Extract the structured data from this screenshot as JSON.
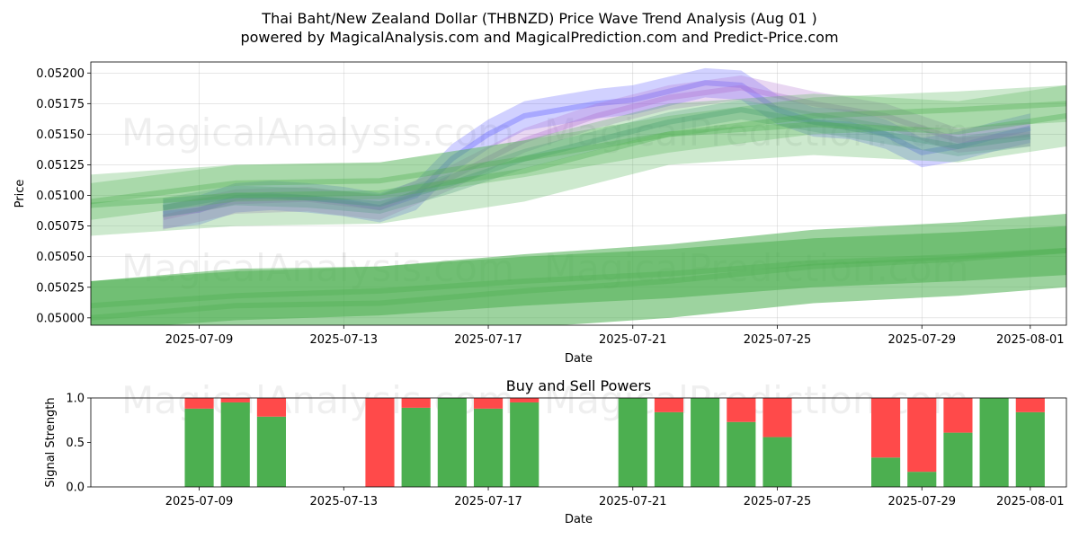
{
  "title_line1": "Thai Baht/New Zealand Dollar (THBNZD) Price Wave Trend Analysis (Aug 01 )",
  "title_line2": "powered by MagicalAnalysis.com and MagicalPrediction.com and Predict-Price.com",
  "watermarks": [
    "MagicalAnalysis.com",
    "MagicalPrediction.com"
  ],
  "colors": {
    "green": "#4caf50",
    "red": "#ff4a4a",
    "blue": "#5b5bff",
    "purple": "#b070d0",
    "teal": "#4a8f8f",
    "amber": "#c8b040"
  },
  "chart_data": [
    {
      "type": "area",
      "title": "",
      "xlabel": "Date",
      "ylabel": "Price",
      "x_ticks": [
        "2025-07-09",
        "2025-07-13",
        "2025-07-17",
        "2025-07-21",
        "2025-07-25",
        "2025-07-29",
        "2025-08-01"
      ],
      "y_ticks": [
        "0.05000",
        "0.05025",
        "0.05050",
        "0.05075",
        "0.05100",
        "0.05125",
        "0.05150",
        "0.05175",
        "0.05200"
      ],
      "xlim": [
        "2025-07-06",
        "2025-08-02"
      ],
      "ylim": [
        0.04994,
        0.05209
      ],
      "grid": true,
      "price_bands": [
        {
          "name": "",
          "color": "blue",
          "x": [
            "2025-07-08",
            "2025-07-09",
            "2025-07-10",
            "2025-07-11",
            "2025-07-12",
            "2025-07-13",
            "2025-07-14",
            "2025-07-15",
            "2025-07-16",
            "2025-07-17",
            "2025-07-18",
            "2025-07-19",
            "2025-07-20",
            "2025-07-21",
            "2025-07-22",
            "2025-07-23",
            "2025-07-24",
            "2025-07-25",
            "2025-07-26",
            "2025-07-27",
            "2025-07-28",
            "2025-07-29",
            "2025-07-30",
            "2025-07-31",
            "2025-08-01",
            "2025-08-01"
          ],
          "center": [
            0.05085,
            0.05088,
            0.05098,
            0.051,
            0.05098,
            0.05095,
            0.0509,
            0.051,
            0.0513,
            0.0515,
            0.05165,
            0.0517,
            0.05175,
            0.05178,
            0.05185,
            0.05192,
            0.0519,
            0.0517,
            0.0516,
            0.05158,
            0.0515,
            0.05135,
            0.0514,
            0.05148,
            0.05155,
            0.05155
          ],
          "half_width": 0.00012
        },
        {
          "name": "",
          "color": "purple",
          "x": [
            "2025-07-08",
            "2025-07-10",
            "2025-07-12",
            "2025-07-14",
            "2025-07-16",
            "2025-07-18",
            "2025-07-20",
            "2025-07-22",
            "2025-07-24",
            "2025-07-26",
            "2025-07-28",
            "2025-07-30",
            "2025-08-01"
          ],
          "center": [
            0.05082,
            0.05095,
            0.05097,
            0.0509,
            0.05115,
            0.05145,
            0.05165,
            0.0518,
            0.05188,
            0.05175,
            0.05165,
            0.05145,
            0.0515
          ],
          "half_width": 0.0001
        },
        {
          "name": "",
          "color": "teal",
          "x": [
            "2025-07-08",
            "2025-07-10",
            "2025-07-12",
            "2025-07-14",
            "2025-07-16",
            "2025-07-18",
            "2025-07-20",
            "2025-07-22",
            "2025-07-24",
            "2025-07-26",
            "2025-07-28",
            "2025-07-30",
            "2025-08-01"
          ],
          "center": [
            0.0509,
            0.051,
            0.05098,
            0.05093,
            0.0511,
            0.0513,
            0.05145,
            0.0516,
            0.0517,
            0.0516,
            0.0515,
            0.0514,
            0.05148
          ],
          "half_width": 8e-05
        },
        {
          "name": "",
          "color": "green",
          "x": [
            "2025-07-06",
            "2025-07-10",
            "2025-07-14",
            "2025-07-18",
            "2025-07-22",
            "2025-07-26",
            "2025-07-30",
            "2025-08-02"
          ],
          "center": [
            0.05092,
            0.051,
            0.05102,
            0.0512,
            0.0515,
            0.05158,
            0.05152,
            0.05165
          ],
          "half_width": 0.00025
        },
        {
          "name": "",
          "color": "green",
          "x": [
            "2025-07-06",
            "2025-07-10",
            "2025-07-14",
            "2025-07-18",
            "2025-07-22",
            "2025-07-26",
            "2025-07-30",
            "2025-08-02"
          ],
          "center": [
            0.05095,
            0.0511,
            0.05112,
            0.0513,
            0.0515,
            0.05165,
            0.0517,
            0.05175
          ],
          "half_width": 0.00015
        },
        {
          "name": "",
          "color": "green",
          "x": [
            "2025-07-06",
            "2025-07-10",
            "2025-07-14",
            "2025-07-18",
            "2025-07-22",
            "2025-07-26",
            "2025-07-30",
            "2025-08-02"
          ],
          "center": [
            0.0501,
            0.05018,
            0.05022,
            0.0503,
            0.05036,
            0.05045,
            0.0505,
            0.05055
          ],
          "half_width": 0.0002
        },
        {
          "name": "",
          "color": "green",
          "x": [
            "2025-07-06",
            "2025-07-10",
            "2025-07-14",
            "2025-07-18",
            "2025-07-22",
            "2025-07-26",
            "2025-07-30",
            "2025-08-02"
          ],
          "center": [
            0.05,
            0.0501,
            0.05012,
            0.05022,
            0.0503,
            0.05042,
            0.05048,
            0.05055
          ],
          "half_width": 0.0003
        }
      ]
    },
    {
      "type": "bar",
      "title": "Buy and Sell Powers",
      "xlabel": "Date",
      "ylabel": "Signal Strength",
      "x_ticks": [
        "2025-07-09",
        "2025-07-13",
        "2025-07-17",
        "2025-07-21",
        "2025-07-25",
        "2025-07-29",
        "2025-08-01"
      ],
      "y_ticks": [
        "0.0",
        "0.5",
        "1.0"
      ],
      "ylim": [
        0,
        1
      ],
      "grid": false,
      "series": [
        {
          "name": "Buy",
          "color": "green"
        },
        {
          "name": "Sell",
          "color": "red"
        }
      ],
      "bars": [
        {
          "date": "2025-07-09",
          "buy": 0.88
        },
        {
          "date": "2025-07-10",
          "buy": 0.95
        },
        {
          "date": "2025-07-11",
          "buy": 0.79
        },
        {
          "date": "2025-07-14",
          "buy": 0.0
        },
        {
          "date": "2025-07-15",
          "buy": 0.89
        },
        {
          "date": "2025-07-16",
          "buy": 1.0
        },
        {
          "date": "2025-07-17",
          "buy": 0.88
        },
        {
          "date": "2025-07-18",
          "buy": 0.95
        },
        {
          "date": "2025-07-21",
          "buy": 1.0
        },
        {
          "date": "2025-07-22",
          "buy": 0.84
        },
        {
          "date": "2025-07-23",
          "buy": 1.0
        },
        {
          "date": "2025-07-24",
          "buy": 0.73
        },
        {
          "date": "2025-07-25",
          "buy": 0.56
        },
        {
          "date": "2025-07-28",
          "buy": 0.33
        },
        {
          "date": "2025-07-29",
          "buy": 0.17
        },
        {
          "date": "2025-07-30",
          "buy": 0.61
        },
        {
          "date": "2025-07-31",
          "buy": 1.0
        },
        {
          "date": "2025-08-01",
          "buy": 0.84
        }
      ]
    }
  ]
}
